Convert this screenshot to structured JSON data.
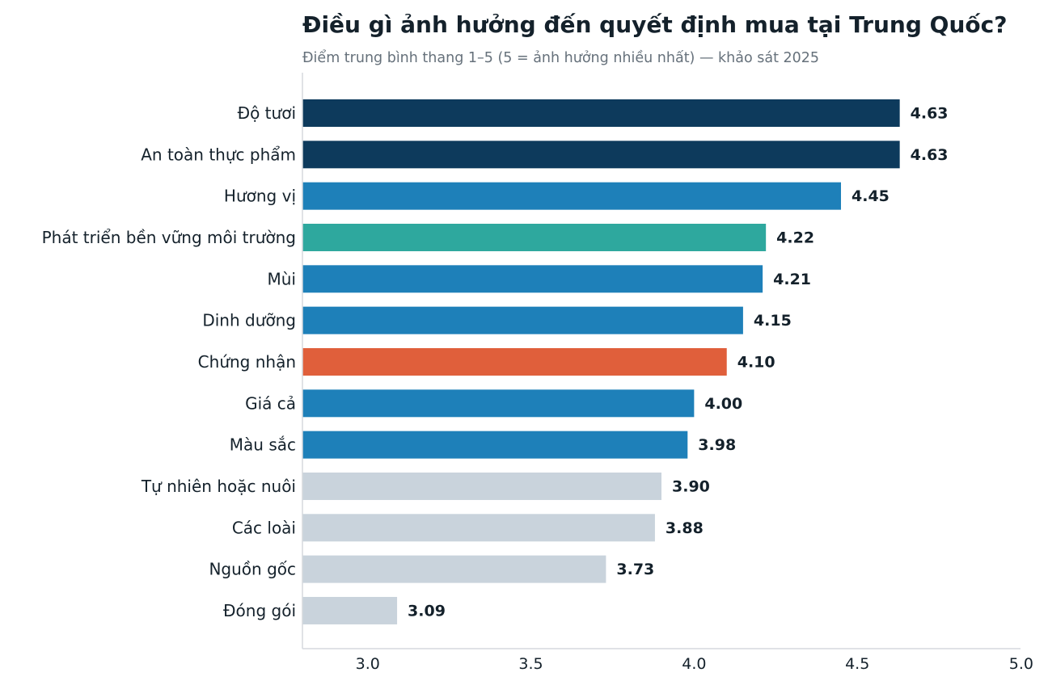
{
  "colors": {
    "dark_navy": "#0d3a5c",
    "blue": "#1e80b9",
    "teal": "#2ea89e",
    "orange": "#e05f3b",
    "gray": "#c9d3dc",
    "axis": "#d5d9dd",
    "text": "#14212b",
    "subtitle": "#66717b"
  },
  "chart_data": {
    "type": "bar",
    "orientation": "horizontal",
    "title": "Điều gì ảnh hưởng đến quyết định mua tại Trung Quốc?",
    "subtitle": "Điểm trung bình thang 1–5 (5 = ảnh hưởng nhiều nhất) — khảo sát 2025",
    "categories": [
      "Độ tươi",
      "An toàn thực phẩm",
      "Hương vị",
      "Phát triển bền vững môi trường",
      "Mùi",
      "Dinh dưỡng",
      "Chứng nhận",
      "Giá cả",
      "Màu sắc",
      "Tự nhiên hoặc nuôi",
      "Các loài",
      "Nguồn gốc",
      "Đóng gói"
    ],
    "values": [
      4.63,
      4.63,
      4.45,
      4.22,
      4.21,
      4.15,
      4.1,
      4.0,
      3.98,
      3.9,
      3.88,
      3.73,
      3.09
    ],
    "value_labels": [
      "4.63",
      "4.63",
      "4.45",
      "4.22",
      "4.21",
      "4.15",
      "4.10",
      "4.00",
      "3.98",
      "3.90",
      "3.88",
      "3.73",
      "3.09"
    ],
    "bar_colors": [
      "#0d3a5c",
      "#0d3a5c",
      "#1e80b9",
      "#2ea89e",
      "#1e80b9",
      "#1e80b9",
      "#e05f3b",
      "#1e80b9",
      "#1e80b9",
      "#c9d3dc",
      "#c9d3dc",
      "#c9d3dc",
      "#c9d3dc"
    ],
    "xlim": [
      2.8,
      5.0
    ],
    "xticks": [
      3.0,
      3.5,
      4.0,
      4.5,
      5.0
    ],
    "xtick_labels": [
      "3.0",
      "3.5",
      "4.0",
      "4.5",
      "5.0"
    ],
    "xlabel": "",
    "ylabel": "",
    "grid": false,
    "legend": "none"
  }
}
